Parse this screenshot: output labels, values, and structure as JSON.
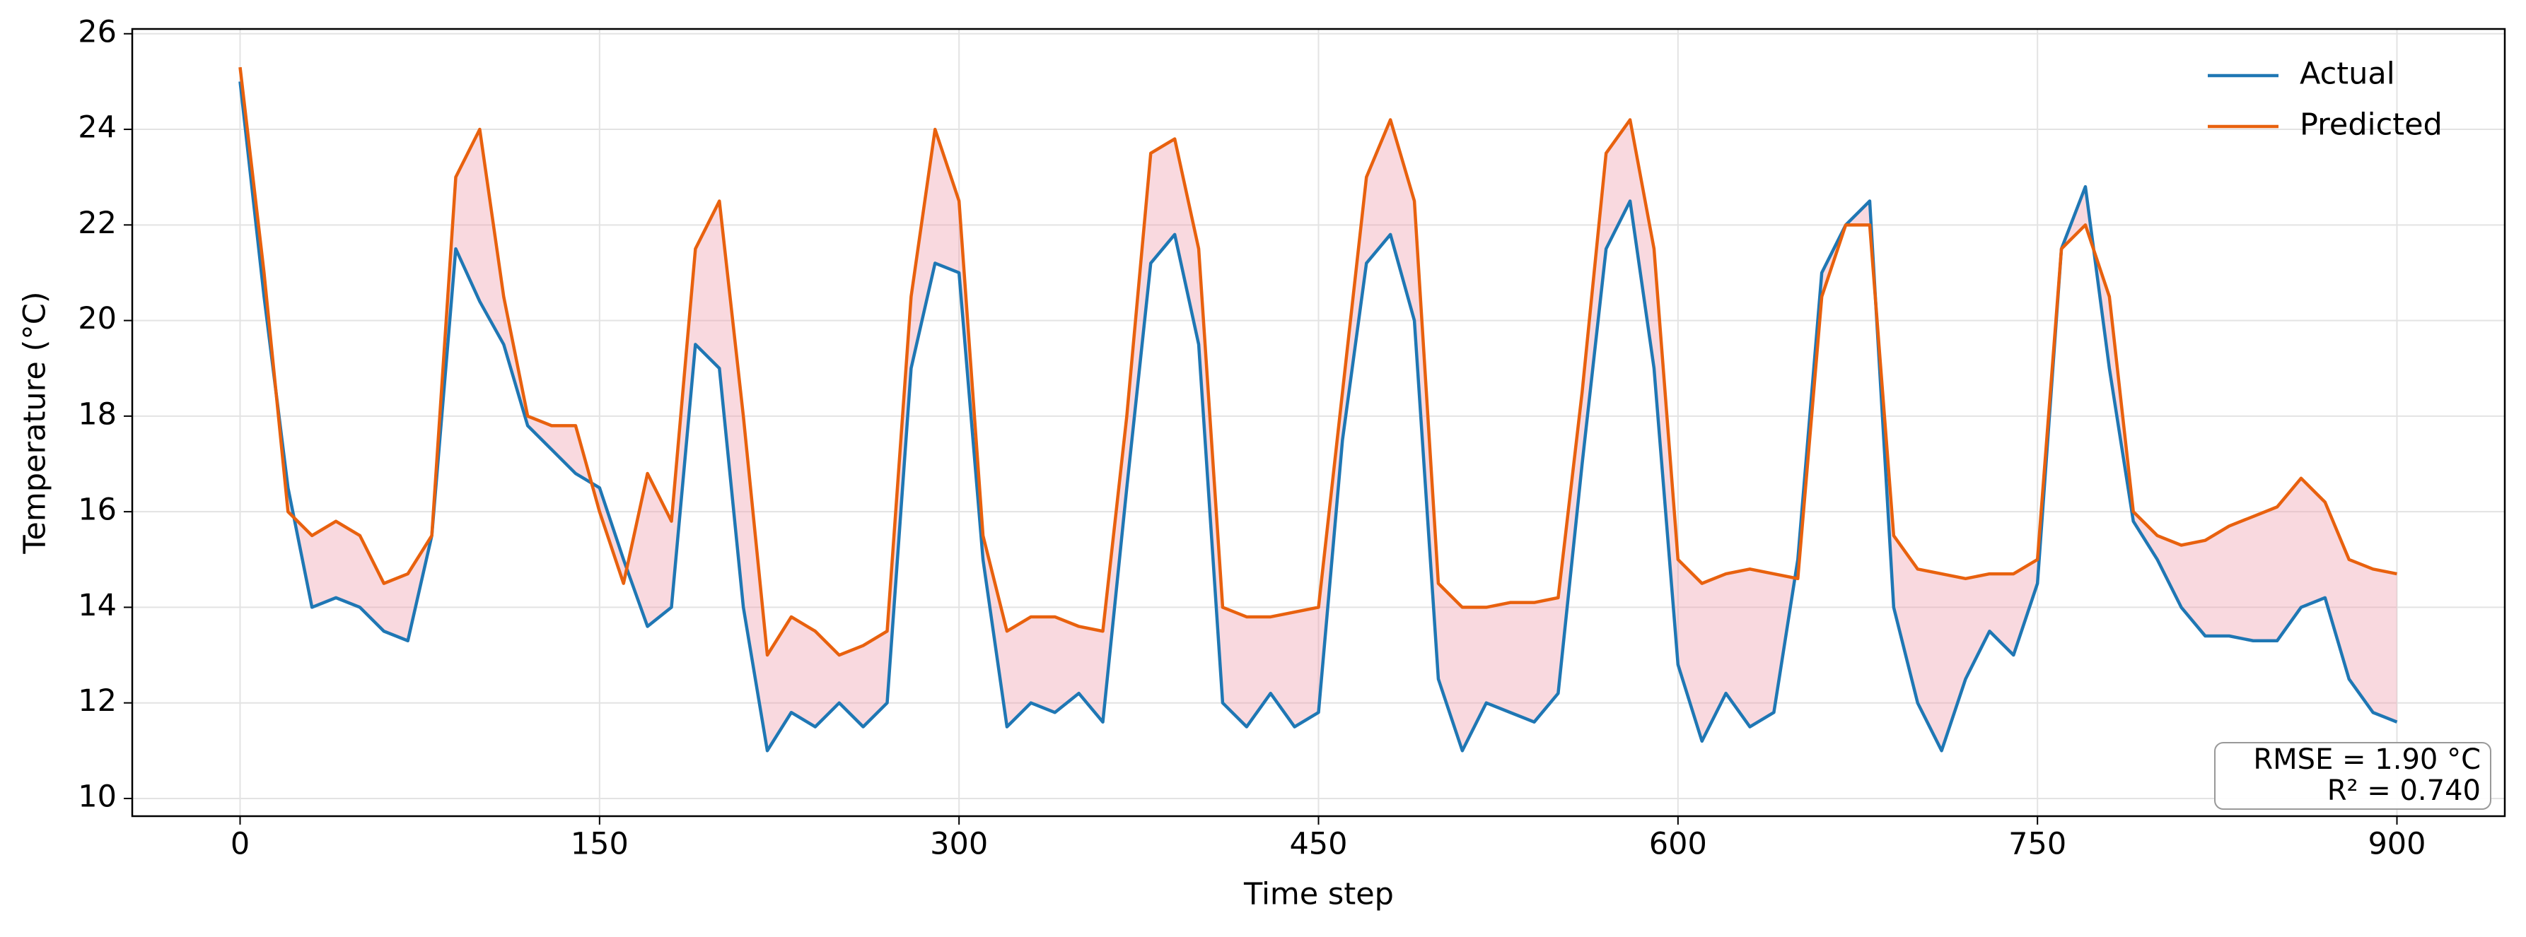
{
  "chart_data": {
    "type": "line",
    "xlabel": "Time step",
    "ylabel": "Temperature (°C)",
    "x": [
      0,
      10,
      20,
      30,
      40,
      50,
      60,
      70,
      80,
      90,
      100,
      110,
      120,
      130,
      140,
      150,
      160,
      170,
      180,
      190,
      200,
      210,
      220,
      230,
      240,
      250,
      260,
      270,
      280,
      290,
      300,
      310,
      320,
      330,
      340,
      350,
      360,
      370,
      380,
      390,
      400,
      410,
      420,
      430,
      440,
      450,
      460,
      470,
      480,
      490,
      500,
      510,
      520,
      530,
      540,
      550,
      560,
      570,
      580,
      590,
      600,
      610,
      620,
      630,
      640,
      650,
      660,
      670,
      680,
      690,
      700,
      710,
      720,
      730,
      740,
      750,
      760,
      770,
      780,
      790,
      800,
      810,
      820,
      830,
      840,
      850,
      860,
      870,
      880,
      890,
      900
    ],
    "series": [
      {
        "name": "Actual",
        "color": "#1f77b4",
        "values": [
          25.0,
          20.5,
          16.5,
          14.0,
          14.2,
          14.0,
          13.5,
          13.3,
          15.5,
          21.5,
          20.4,
          19.5,
          17.8,
          17.3,
          16.8,
          16.5,
          15.0,
          13.6,
          14.0,
          19.5,
          19.0,
          14.0,
          11.0,
          11.8,
          11.5,
          12.0,
          11.5,
          12.0,
          19.0,
          21.2,
          21.0,
          15.0,
          11.5,
          12.0,
          11.8,
          12.2,
          11.6,
          16.5,
          21.2,
          21.8,
          19.5,
          12.0,
          11.5,
          12.2,
          11.5,
          11.8,
          17.5,
          21.2,
          21.8,
          20.0,
          12.5,
          11.0,
          12.0,
          11.8,
          11.6,
          12.2,
          17.0,
          21.5,
          22.5,
          19.0,
          12.8,
          11.2,
          12.2,
          11.5,
          11.8,
          15.0,
          21.0,
          22.0,
          22.5,
          14.0,
          12.0,
          11.0,
          12.5,
          13.5,
          13.0,
          14.5,
          21.5,
          22.8,
          19.0,
          15.8,
          15.0,
          14.0,
          13.4,
          13.4,
          13.3,
          13.3,
          14.0,
          14.2,
          12.5,
          11.8,
          11.6
        ]
      },
      {
        "name": "Predicted",
        "color": "#e8610e",
        "values": [
          25.3,
          21.0,
          16.0,
          15.5,
          15.8,
          15.5,
          14.5,
          14.7,
          15.5,
          23.0,
          24.0,
          20.5,
          18.0,
          17.8,
          17.8,
          16.0,
          14.5,
          16.8,
          15.8,
          21.5,
          22.5,
          18.0,
          13.0,
          13.8,
          13.5,
          13.0,
          13.2,
          13.5,
          20.5,
          24.0,
          22.5,
          15.5,
          13.5,
          13.8,
          13.8,
          13.6,
          13.5,
          18.0,
          23.5,
          23.8,
          21.5,
          14.0,
          13.8,
          13.8,
          13.9,
          14.0,
          18.5,
          23.0,
          24.2,
          22.5,
          14.5,
          14.0,
          14.0,
          14.1,
          14.1,
          14.2,
          18.5,
          23.5,
          24.2,
          21.5,
          15.0,
          14.5,
          14.7,
          14.8,
          14.7,
          14.6,
          20.5,
          22.0,
          22.0,
          15.5,
          14.8,
          14.7,
          14.6,
          14.7,
          14.7,
          15.0,
          21.5,
          22.0,
          20.5,
          16.0,
          15.5,
          15.3,
          15.4,
          15.7,
          15.9,
          16.1,
          16.7,
          16.2,
          15.0,
          14.8,
          14.7
        ]
      }
    ],
    "fill_between": true,
    "fill_color": "#f0a0b0",
    "xlim": [
      -45,
      945
    ],
    "xticks": [
      0,
      150,
      300,
      450,
      600,
      750,
      900
    ],
    "ylim": [
      9.63,
      26.1
    ],
    "yticks": [
      10,
      12,
      14,
      16,
      18,
      20,
      22,
      24,
      26
    ],
    "grid": true,
    "legend": "upper right",
    "annotations": [
      "RMSE = 1.90 °C",
      "R² = 0.740"
    ]
  }
}
